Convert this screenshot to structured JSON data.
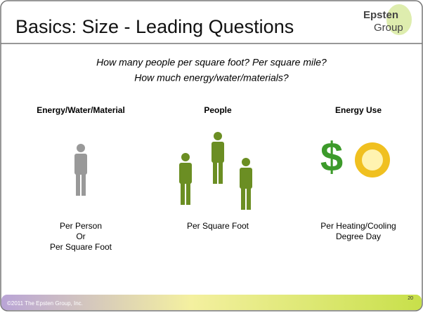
{
  "header": {
    "title": "Basics: Size - Leading Questions",
    "logo": [
      "Epsten",
      "Group"
    ]
  },
  "subtitle": [
    "How many people per square foot? Per square mile?",
    "How much energy/water/materials?"
  ],
  "columns": [
    {
      "heading": "Energy/Water/Material",
      "caption": [
        "Per Person",
        "Or",
        "Per Square Foot"
      ]
    },
    {
      "heading": "People",
      "caption": [
        "Per Square Foot"
      ]
    },
    {
      "heading": "Energy Use",
      "caption": [
        "Per Heating/Cooling",
        "Degree Day"
      ]
    }
  ],
  "footer": {
    "copyright": "©2011 The Epsten Group, Inc.",
    "page": "20"
  }
}
